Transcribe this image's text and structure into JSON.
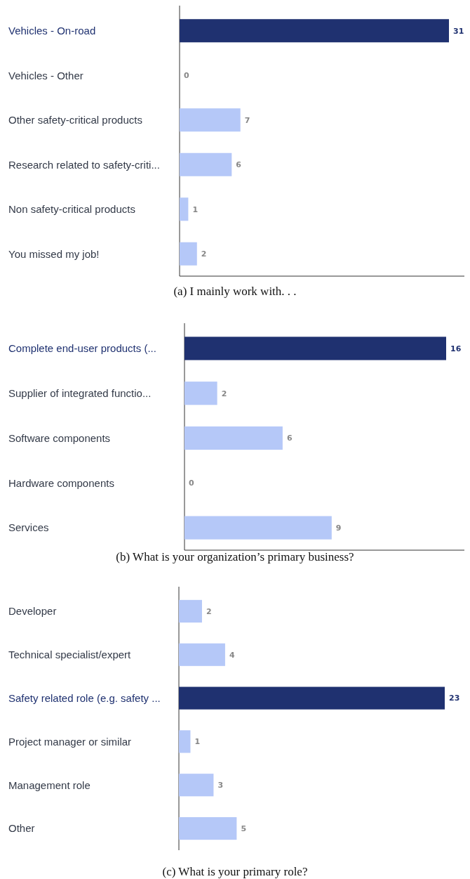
{
  "chart_data": [
    {
      "type": "bar",
      "orientation": "horizontal",
      "title": "(a) I mainly work with. . .",
      "categories": [
        "Vehicles - On-road",
        "Vehicles - Other",
        "Other safety-critical products",
        "Research related to safety-criti...",
        "Non safety-critical products",
        "You missed my job!"
      ],
      "values": [
        31,
        0,
        7,
        6,
        1,
        2
      ],
      "colors": [
        "#1f3170",
        "#b5c8f8",
        "#b5c8f8",
        "#b5c8f8",
        "#b5c8f8",
        "#b5c8f8"
      ],
      "data_labels": true
    },
    {
      "type": "bar",
      "orientation": "horizontal",
      "title": "(b) What is your organization’s primary business?",
      "categories": [
        "Complete end-user products (...",
        "Supplier of integrated functio...",
        "Software components",
        "Hardware components",
        "Services"
      ],
      "values": [
        16,
        2,
        6,
        0,
        9
      ],
      "colors": [
        "#1f3170",
        "#b5c8f8",
        "#b5c8f8",
        "#b5c8f8",
        "#b5c8f8"
      ],
      "data_labels": true
    },
    {
      "type": "bar",
      "orientation": "horizontal",
      "title": "(c) What is your primary role?",
      "categories": [
        "Developer",
        "Technical specialist/expert",
        "Safety related role (e.g. safety ...",
        "Project manager or similar",
        "Management role",
        "Other"
      ],
      "values": [
        2,
        4,
        23,
        1,
        3,
        5
      ],
      "colors": [
        "#b5c8f8",
        "#b5c8f8",
        "#1f3170",
        "#b5c8f8",
        "#b5c8f8",
        "#b5c8f8"
      ],
      "data_labels": true
    }
  ]
}
